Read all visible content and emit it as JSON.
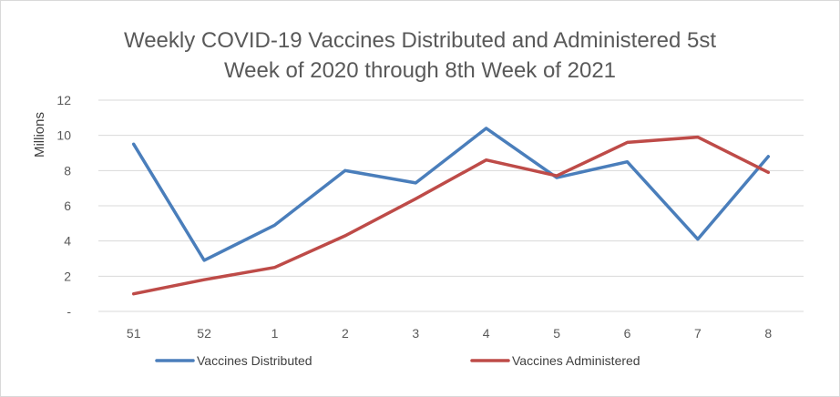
{
  "chart_data": {
    "type": "line",
    "title_line1": "Weekly COVID-19 Vaccines Distributed and Administered 5st",
    "title_line2": "Week of 2020 through 8th Week of 2021",
    "ylabel": "Millions",
    "xlabel": "",
    "categories": [
      "51",
      "52",
      "1",
      "2",
      "3",
      "4",
      "5",
      "6",
      "7",
      "8"
    ],
    "ylim": [
      0,
      12
    ],
    "yticks": [
      0,
      2,
      4,
      6,
      8,
      10,
      12
    ],
    "ytick_labels": [
      "-",
      "2",
      "4",
      "6",
      "8",
      "10",
      "12"
    ],
    "grid": "horizontal",
    "legend_position": "bottom",
    "series": [
      {
        "name": "Vaccines Distributed",
        "color": "#4a7ebb",
        "values": [
          9.5,
          2.9,
          4.9,
          8.0,
          7.3,
          10.4,
          7.6,
          8.5,
          4.1,
          8.8
        ]
      },
      {
        "name": "Vaccines Administered",
        "color": "#be4b48",
        "values": [
          1.0,
          1.8,
          2.5,
          4.3,
          6.4,
          8.6,
          7.7,
          9.6,
          9.9,
          7.9
        ]
      }
    ]
  }
}
